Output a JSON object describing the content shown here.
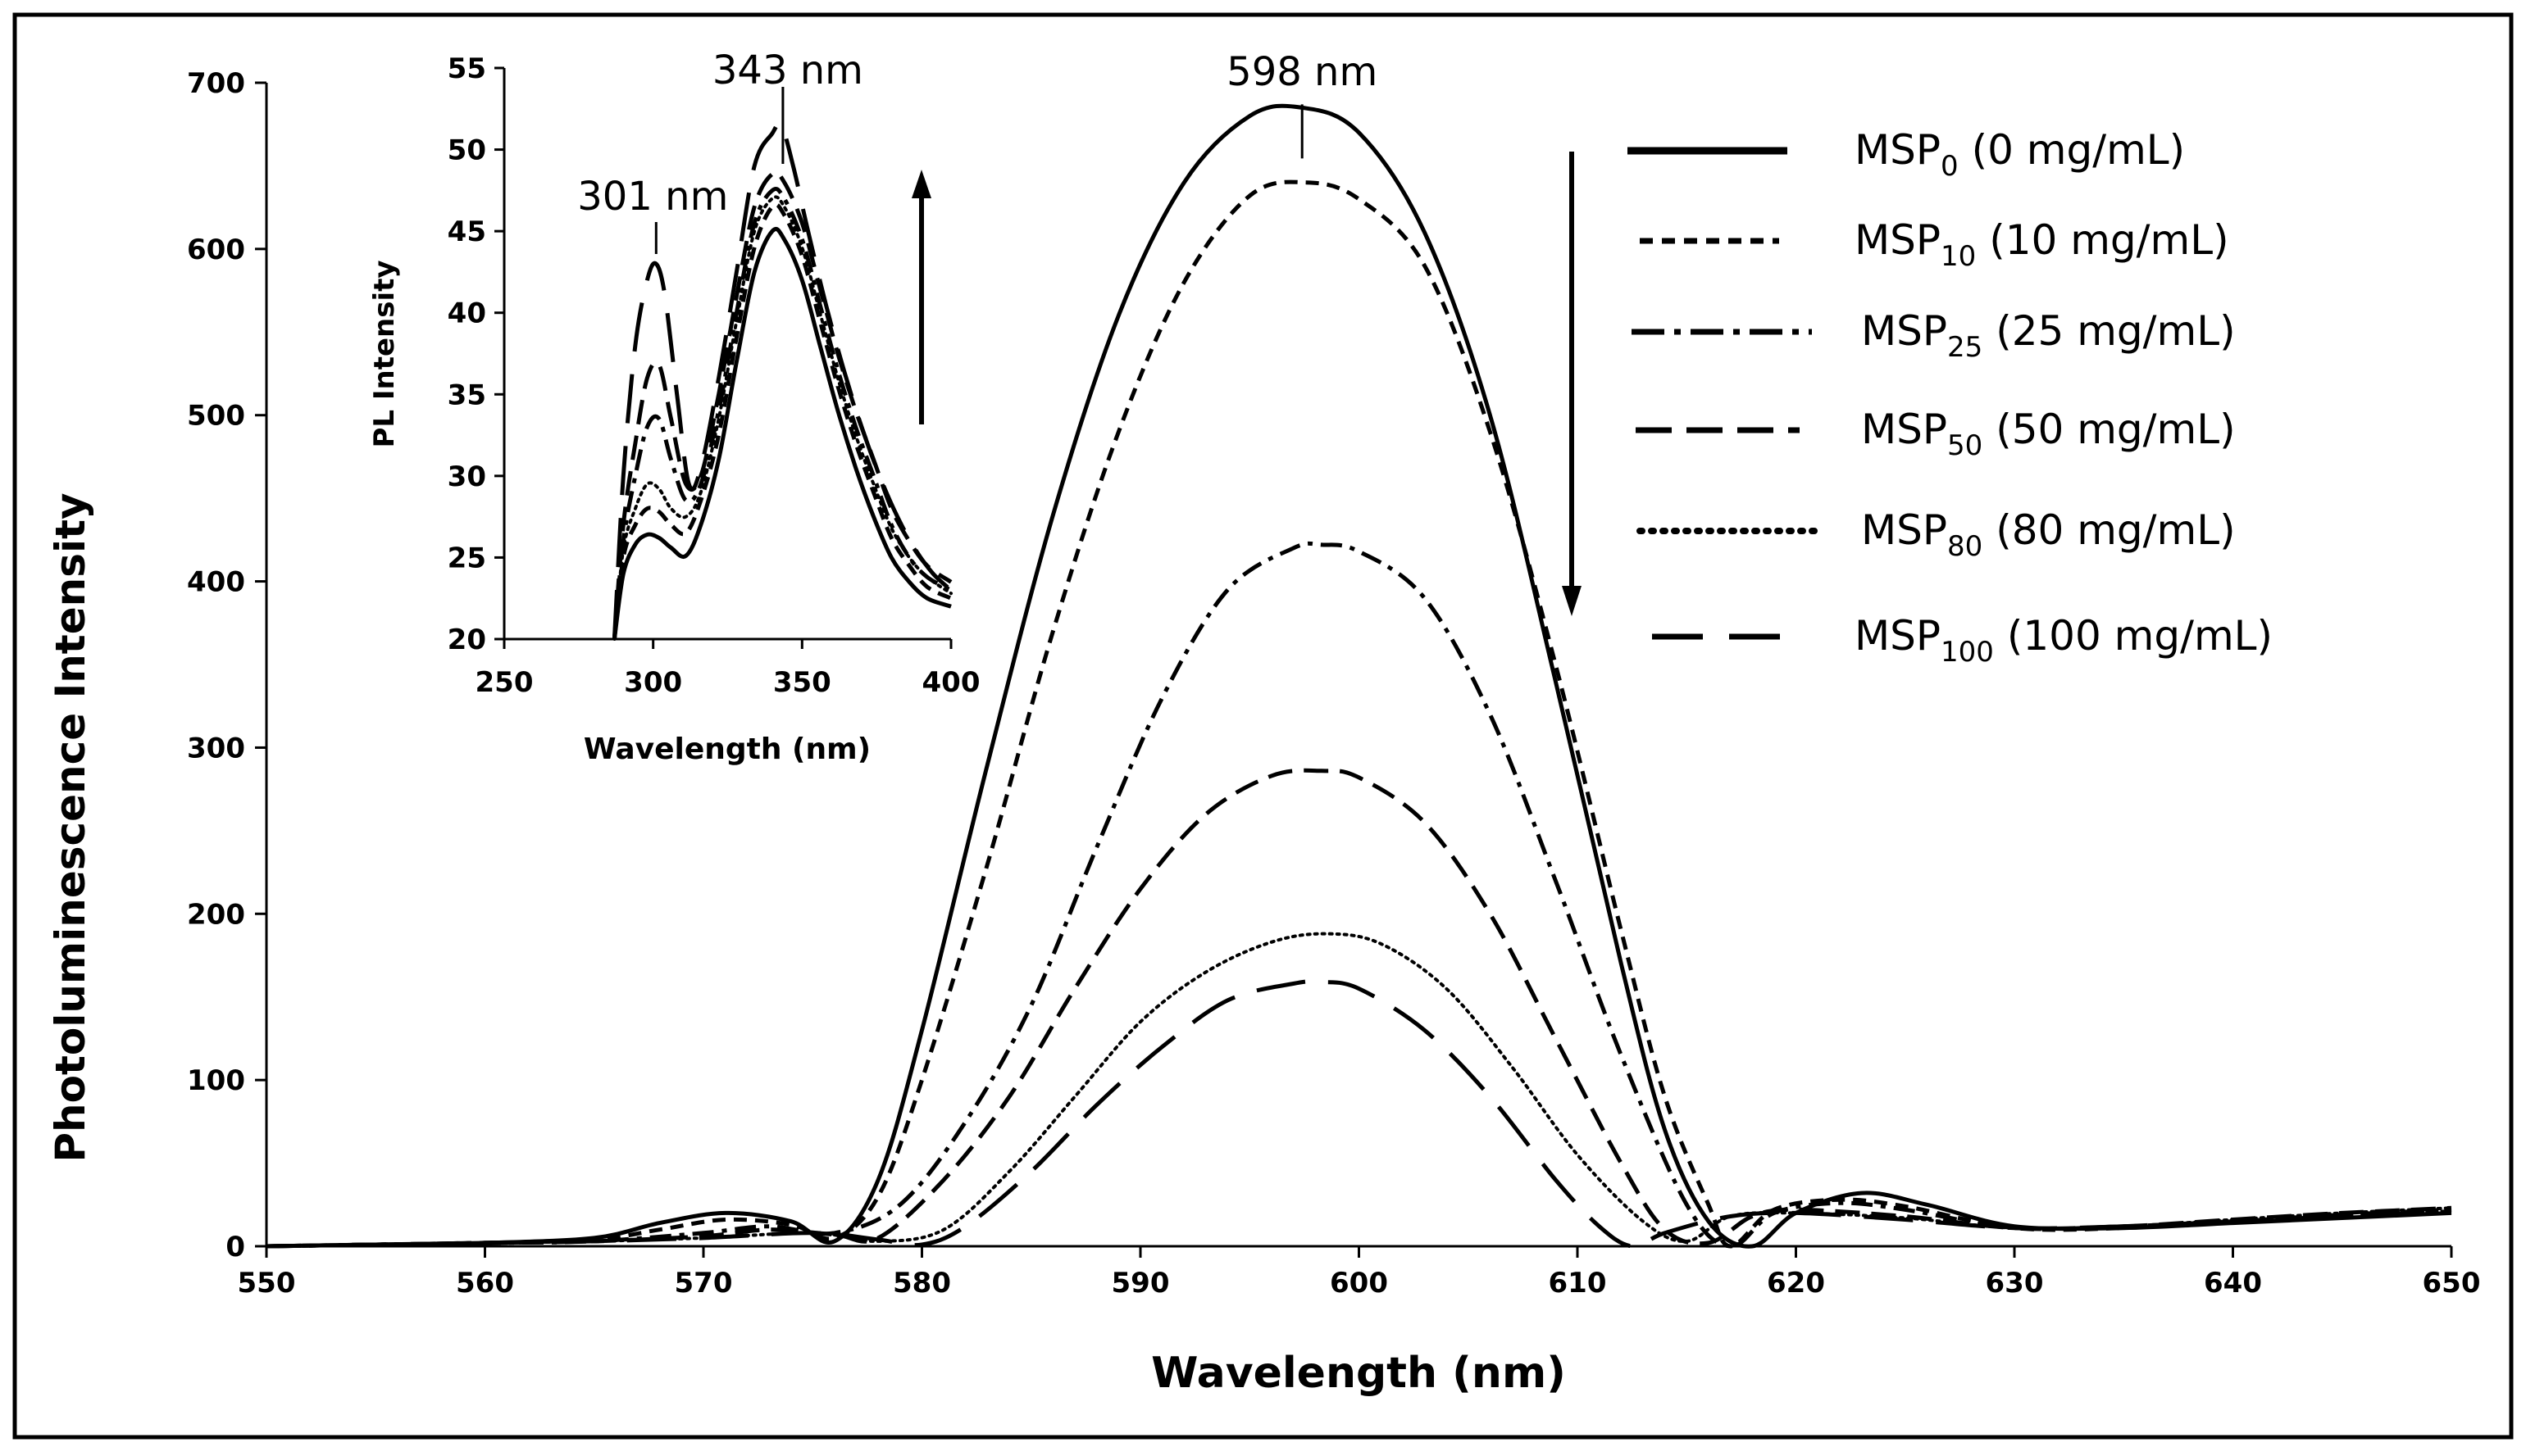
{
  "chart_data": [
    {
      "type": "line",
      "title": "",
      "xlabel": "Wavelength  (nm)",
      "ylabel": "Photoluminescence Intensity",
      "xlim": [
        550,
        650
      ],
      "ylim": [
        0,
        700
      ],
      "xticks": [
        550,
        560,
        570,
        580,
        590,
        600,
        610,
        620,
        630,
        640,
        650
      ],
      "yticks": [
        0,
        100,
        200,
        300,
        400,
        500,
        600,
        700
      ],
      "grid": false,
      "legend_position": "top-right",
      "annotations": [
        {
          "text": "598 nm",
          "x": 597.4
        }
      ],
      "series": [
        {
          "name": "MSP0 (0 mg/mL)",
          "base": "MSP",
          "sub": "0",
          "rest": " (0 mg/mL)",
          "dash": "solid",
          "x": [
            550,
            555,
            560,
            565,
            568,
            571,
            574,
            576,
            578,
            580,
            583,
            586,
            589,
            592,
            595,
            597.4,
            600,
            603,
            606,
            609,
            612,
            614,
            616,
            618,
            620,
            623,
            626,
            630,
            635,
            640,
            645,
            650
          ],
          "y": [
            0,
            1,
            2,
            5,
            14,
            20,
            15,
            3,
            40,
            130,
            290,
            440,
            560,
            640,
            680,
            685,
            670,
            610,
            500,
            340,
            170,
            70,
            15,
            0,
            20,
            32,
            25,
            12,
            11,
            14,
            17,
            20
          ]
        },
        {
          "name": "MSP10 (10 mg/mL)",
          "base": "MSP",
          "sub": "10",
          "rest": " (10 mg/mL)",
          "dash": "16 10",
          "x": [
            550,
            555,
            560,
            565,
            568,
            571,
            574,
            576,
            578,
            580,
            583,
            586,
            589,
            592,
            595,
            597.6,
            600,
            603,
            606,
            609,
            612,
            614,
            616,
            617,
            619,
            622,
            625,
            630,
            635,
            640,
            645,
            650
          ],
          "y": [
            0,
            1,
            2,
            4,
            10,
            16,
            13,
            5,
            30,
            100,
            230,
            370,
            490,
            580,
            632,
            640,
            630,
            590,
            490,
            350,
            190,
            90,
            25,
            0,
            22,
            28,
            24,
            11,
            11,
            15,
            18,
            22
          ]
        },
        {
          "name": "MSP25 (25 mg/mL)",
          "base": "MSP",
          "sub": "25",
          "rest": " (25 mg/mL)",
          "dash": "26 10 6 10",
          "x": [
            550,
            555,
            560,
            565,
            570,
            573,
            576,
            579,
            582,
            585,
            588,
            591,
            594,
            597,
            598.3,
            600,
            603,
            606,
            609,
            612,
            615,
            617,
            619,
            622,
            625,
            630,
            635,
            640,
            645,
            650
          ],
          "y": [
            0,
            1,
            2,
            3,
            8,
            12,
            8,
            25,
            75,
            145,
            240,
            330,
            395,
            420,
            422,
            418,
            390,
            320,
            220,
            115,
            25,
            0,
            20,
            26,
            22,
            11,
            12,
            15,
            19,
            22
          ]
        },
        {
          "name": "MSP50 (50 mg/mL)",
          "base": "MSP",
          "sub": "50",
          "rest": " (50 mg/mL)",
          "dash": "30 14",
          "x": [
            550,
            555,
            560,
            565,
            570,
            573,
            576,
            578,
            581,
            584,
            587,
            590,
            593,
            596,
            598.3,
            600,
            603,
            606,
            609,
            612,
            614,
            616,
            618,
            620,
            625,
            630,
            635,
            640,
            645,
            650
          ],
          "y": [
            0,
            1,
            2,
            3,
            6,
            10,
            7,
            5,
            40,
            90,
            155,
            215,
            260,
            283,
            286,
            282,
            255,
            200,
            125,
            50,
            10,
            2,
            18,
            22,
            18,
            11,
            12,
            16,
            20,
            23
          ]
        },
        {
          "name": "MSP80 (80 mg/mL)",
          "base": "MSP",
          "sub": "80",
          "rest": " (80 mg/mL)",
          "dash": "3 6",
          "x": [
            550,
            555,
            560,
            565,
            570,
            575,
            578,
            581,
            584,
            587,
            590,
            593,
            596,
            598.5,
            601,
            604,
            607,
            610,
            613,
            615,
            617,
            620,
            625,
            630,
            635,
            640,
            645,
            650
          ],
          "y": [
            0,
            1,
            2,
            3,
            5,
            8,
            3,
            10,
            45,
            90,
            135,
            165,
            183,
            188,
            182,
            155,
            108,
            55,
            15,
            3,
            18,
            20,
            17,
            11,
            12,
            16,
            20,
            23
          ]
        },
        {
          "name": "MSP100 (100 mg/mL)",
          "base": "MSP",
          "sub": "100",
          "rest": " (100 mg/mL)",
          "dash": "60 28",
          "x": [
            550,
            555,
            560,
            565,
            570,
            575,
            578,
            580,
            582,
            585,
            588,
            591,
            594,
            597,
            598.3,
            600,
            603,
            606,
            609,
            611,
            612.5,
            614,
            617,
            620,
            625,
            630,
            635,
            640,
            645,
            650
          ],
          "y": [
            0,
            1,
            2,
            3,
            5,
            8,
            4,
            1,
            12,
            45,
            85,
            120,
            148,
            158,
            159,
            155,
            130,
            90,
            40,
            12,
            0,
            8,
            18,
            20,
            16,
            11,
            12,
            15,
            18,
            21
          ]
        }
      ]
    },
    {
      "type": "line",
      "title": "",
      "xlabel": "Wavelength (nm)",
      "ylabel": "PL Intensity",
      "xlim": [
        250,
        400
      ],
      "ylim": [
        20,
        55
      ],
      "xticks": [
        250,
        300,
        350,
        400
      ],
      "yticks": [
        20,
        25,
        30,
        35,
        40,
        45,
        50,
        55
      ],
      "grid": false,
      "annotations": [
        {
          "text": "301 nm",
          "x": 301
        },
        {
          "text": "343 nm",
          "x": 343
        }
      ],
      "series": [
        {
          "name": "MSP0",
          "dash": "solid",
          "x": [
            287,
            290,
            294,
            298,
            302,
            306,
            311,
            316,
            322,
            328,
            334,
            340,
            344,
            350,
            356,
            362,
            368,
            374,
            380,
            386,
            392,
            400
          ],
          "y": [
            20,
            24,
            25.8,
            26.4,
            26.2,
            25.6,
            25.1,
            27,
            31,
            37,
            42.5,
            45,
            44.5,
            42,
            38,
            34,
            30.5,
            27.5,
            25,
            23.5,
            22.5,
            22
          ]
        },
        {
          "name": "MSP10",
          "dash": "16 10",
          "x": [
            287,
            290,
            294,
            298,
            302,
            306,
            311,
            316,
            322,
            328,
            334,
            340,
            344,
            350,
            356,
            362,
            368,
            374,
            380,
            386,
            392,
            400
          ],
          "y": [
            20,
            25,
            27,
            28,
            27.8,
            27,
            26.5,
            28.5,
            32.5,
            38.5,
            44,
            46.5,
            46,
            43.5,
            39.5,
            35.5,
            32,
            29,
            26.2,
            24.5,
            23.2,
            22.5
          ]
        },
        {
          "name": "MSP25",
          "dash": "26 10 6 10",
          "x": [
            287,
            290,
            294,
            298,
            302,
            306,
            311,
            316,
            322,
            328,
            334,
            340,
            344,
            350,
            356,
            362,
            368,
            374,
            380,
            386,
            392,
            400
          ],
          "y": [
            20,
            26,
            30,
            33,
            33.5,
            31,
            28.5,
            29.5,
            34,
            40,
            45.5,
            47.5,
            47,
            44.5,
            40.5,
            36.5,
            33,
            30,
            27,
            25,
            23.8,
            23
          ]
        },
        {
          "name": "MSP50",
          "dash": "30 14",
          "x": [
            287,
            290,
            294,
            298,
            302,
            306,
            311,
            316,
            322,
            328,
            334,
            340,
            344,
            350,
            356,
            362,
            368,
            374,
            380,
            386,
            392,
            400
          ],
          "y": [
            20,
            27,
            32,
            36,
            36.8,
            33.5,
            29.5,
            30,
            35,
            41,
            46.5,
            48.5,
            48,
            45.5,
            41.5,
            37.5,
            34,
            31,
            28,
            26,
            24.5,
            23.5
          ]
        },
        {
          "name": "MSP80",
          "dash": "3 6",
          "x": [
            287,
            290,
            294,
            298,
            302,
            306,
            311,
            316,
            322,
            328,
            334,
            340,
            344,
            350,
            356,
            362,
            368,
            374,
            380,
            386,
            392,
            400
          ],
          "y": [
            20,
            25.5,
            28,
            29.5,
            29.2,
            28,
            27.5,
            29,
            33.5,
            39.5,
            45,
            47,
            46.5,
            44,
            40,
            36,
            32.5,
            29.5,
            26.8,
            25,
            23.8,
            22.8
          ]
        },
        {
          "name": "MSP100",
          "dash": "60 28",
          "x": [
            287,
            290,
            294,
            298,
            301,
            304,
            308,
            312,
            316,
            322,
            328,
            334,
            340,
            343,
            347,
            352,
            358,
            364,
            370,
            376,
            382,
            388,
            394,
            400
          ],
          "y": [
            20,
            30,
            38,
            42,
            43,
            41,
            35,
            29.5,
            30.5,
            36,
            42.5,
            49,
            51,
            51.5,
            49,
            45,
            40.5,
            36.5,
            33,
            30,
            27.5,
            25.5,
            24,
            23
          ]
        }
      ]
    }
  ]
}
